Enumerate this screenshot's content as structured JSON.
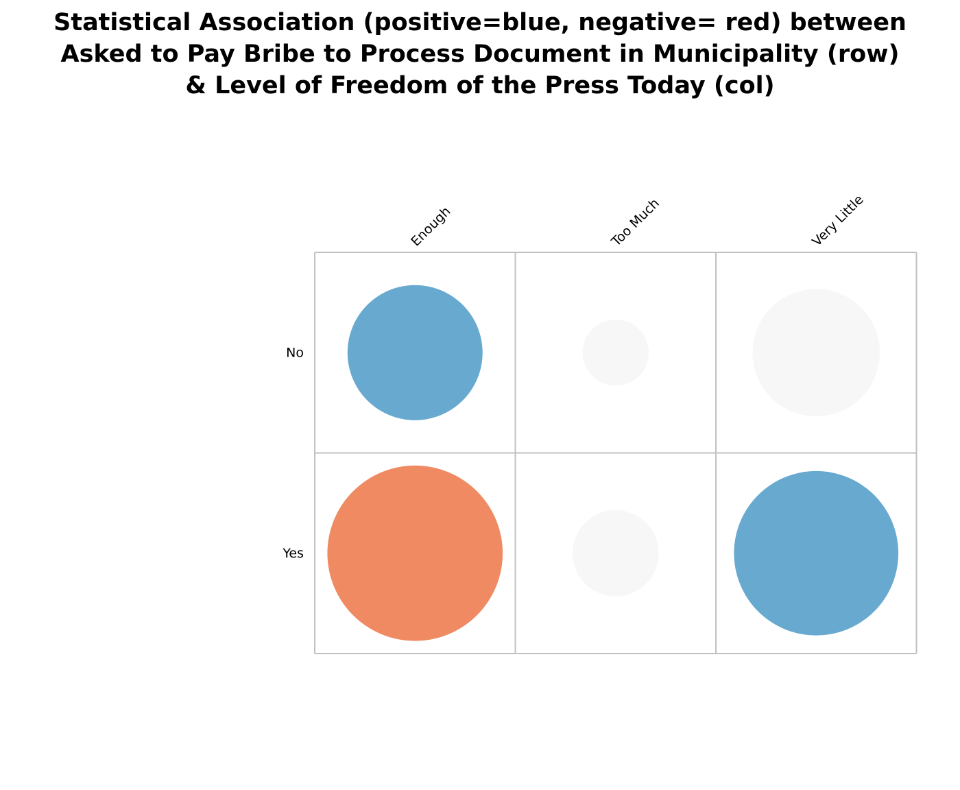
{
  "title_lines": [
    "Statistical Association (positive=blue, negative= red) between",
    "Asked to Pay Bribe to Process Document in Municipality (row)",
    "& Level of Freedom of the Press Today (col)"
  ],
  "colors": {
    "positive": "#67a9cf",
    "negative": "#ef8a62",
    "neutral": "#f7f7f7",
    "grid": "#c0c0c0"
  },
  "chart_data": {
    "type": "heatmap",
    "title": "Statistical Association (positive=blue, negative= red) between Asked to Pay Bribe to Process Document in Municipality (row) & Level of Freedom of the Press Today (col)",
    "columns": [
      "Enough",
      "Too Much",
      "Very Little"
    ],
    "rows": [
      "No",
      "Yes"
    ],
    "values": [
      [
        0.54,
        0.13,
        -0.48
      ],
      [
        -0.91,
        0.22,
        0.8
      ]
    ],
    "cell_colors": [
      [
        "positive",
        "neutral",
        "neutral"
      ],
      [
        "negative",
        "neutral",
        "positive"
      ]
    ],
    "grid": true
  }
}
